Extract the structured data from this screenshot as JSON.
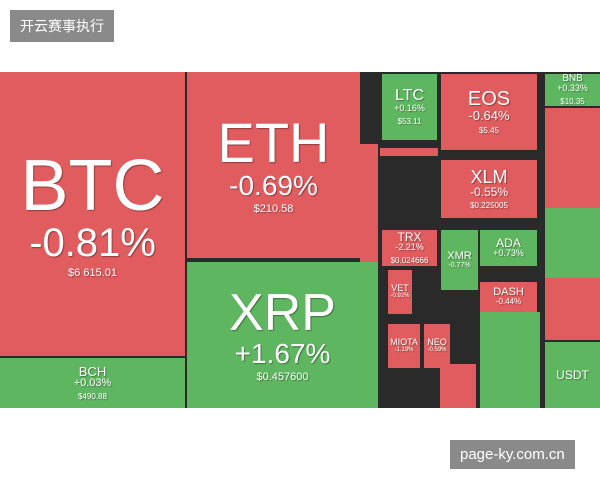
{
  "header": {
    "label": "开云赛事执行"
  },
  "footer": {
    "label": "page-ky.com.cn"
  },
  "tiles": [
    {
      "name": "BTC",
      "change": "-0.81%",
      "price": "$6 615.01"
    },
    {
      "name": "BCH",
      "change": "+0.03%",
      "price": "$490.88"
    },
    {
      "name": "ETH",
      "change": "-0.69%",
      "price": "$210.58"
    },
    {
      "name": "XRP",
      "change": "+1.67%",
      "price": "$0.457600"
    },
    {
      "name": "LTC",
      "change": "+0.16%",
      "price": "$53.11"
    },
    {
      "name": "EOS",
      "change": "-0.64%",
      "price": "$5.45"
    },
    {
      "name": "XLM",
      "change": "-0.55%",
      "price": "$0.225005"
    },
    {
      "name": "TRX",
      "change": "-2.21%",
      "price": "$0.024666"
    },
    {
      "name": "XMR",
      "change": "-0.77%"
    },
    {
      "name": "ADA",
      "change": "+0.73%"
    },
    {
      "name": "DASH",
      "change": "-0.44%"
    },
    {
      "name": "BNB",
      "change": "+0.33%",
      "price": "$10.35"
    },
    {
      "name": "USDT"
    },
    {
      "name": "VET",
      "change": "-0.92%"
    },
    {
      "name": "NEO",
      "change": "-0.59%"
    },
    {
      "name": "MIOTA",
      "change": "-1.19%"
    }
  ]
}
